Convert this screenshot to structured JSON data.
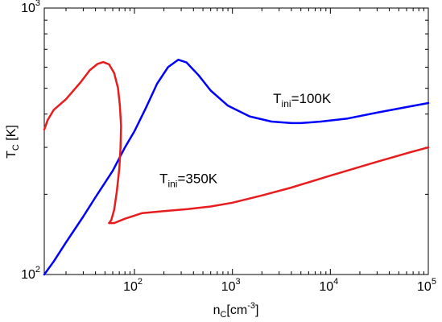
{
  "chart_data": {
    "type": "line",
    "title": "",
    "xlabel": {
      "base": "n",
      "sub": "C",
      "rest": "[cm",
      "sup": "-3",
      "close": "]"
    },
    "ylabel": {
      "base": "T",
      "sub": "C",
      "rest": " [K]"
    },
    "xscale": "log",
    "yscale": "log",
    "xlim": [
      12,
      100000
    ],
    "ylim": [
      100,
      1000
    ],
    "grid": false,
    "x_ticks": [
      {
        "value": 100,
        "base": "10",
        "exp": "2"
      },
      {
        "value": 1000,
        "base": "10",
        "exp": "3"
      },
      {
        "value": 10000,
        "base": "10",
        "exp": "4"
      },
      {
        "value": 100000,
        "base": "10",
        "exp": "5"
      }
    ],
    "y_ticks": [
      {
        "value": 100,
        "base": "10",
        "exp": "2"
      },
      {
        "value": 1000,
        "base": "10",
        "exp": "3"
      }
    ],
    "series": [
      {
        "color": "#0000ff",
        "points": [
          [
            12,
            100
          ],
          [
            15,
            112
          ],
          [
            20,
            132
          ],
          [
            30,
            165
          ],
          [
            40,
            195
          ],
          [
            60,
            245
          ],
          [
            80,
            300
          ],
          [
            100,
            345
          ],
          [
            130,
            420
          ],
          [
            170,
            520
          ],
          [
            220,
            600
          ],
          [
            280,
            640
          ],
          [
            340,
            625
          ],
          [
            450,
            560
          ],
          [
            600,
            490
          ],
          [
            900,
            430
          ],
          [
            1500,
            392
          ],
          [
            2500,
            375
          ],
          [
            4000,
            370
          ],
          [
            5000,
            370
          ],
          [
            8000,
            375
          ],
          [
            15000,
            385
          ],
          [
            30000,
            405
          ],
          [
            60000,
            425
          ],
          [
            100000,
            440
          ]
        ]
      },
      {
        "color": "#e81c1c",
        "points": [
          [
            12,
            350
          ],
          [
            13,
            380
          ],
          [
            15,
            415
          ],
          [
            20,
            455
          ],
          [
            28,
            525
          ],
          [
            35,
            585
          ],
          [
            42,
            617
          ],
          [
            48,
            627
          ],
          [
            55,
            615
          ],
          [
            62,
            570
          ],
          [
            68,
            500
          ],
          [
            71,
            430
          ],
          [
            73,
            360
          ],
          [
            72,
            300
          ],
          [
            70,
            250
          ],
          [
            66,
            205
          ],
          [
            62,
            175
          ],
          [
            58,
            160
          ],
          [
            55,
            156
          ],
          [
            62,
            156
          ],
          [
            80,
            162
          ],
          [
            120,
            170
          ],
          [
            200,
            173
          ],
          [
            350,
            176
          ],
          [
            600,
            180
          ],
          [
            1000,
            186
          ],
          [
            2000,
            198
          ],
          [
            4000,
            212
          ],
          [
            10000,
            235
          ],
          [
            30000,
            265
          ],
          [
            60000,
            285
          ],
          [
            100000,
            300
          ]
        ]
      }
    ],
    "annotations": [
      {
        "base": "T",
        "sub": "ini",
        "rest": "=100K",
        "x": 2600,
        "y": 440
      },
      {
        "base": "T",
        "sub": "ini",
        "rest": "=350K",
        "x": 180,
        "y": 220
      }
    ]
  }
}
